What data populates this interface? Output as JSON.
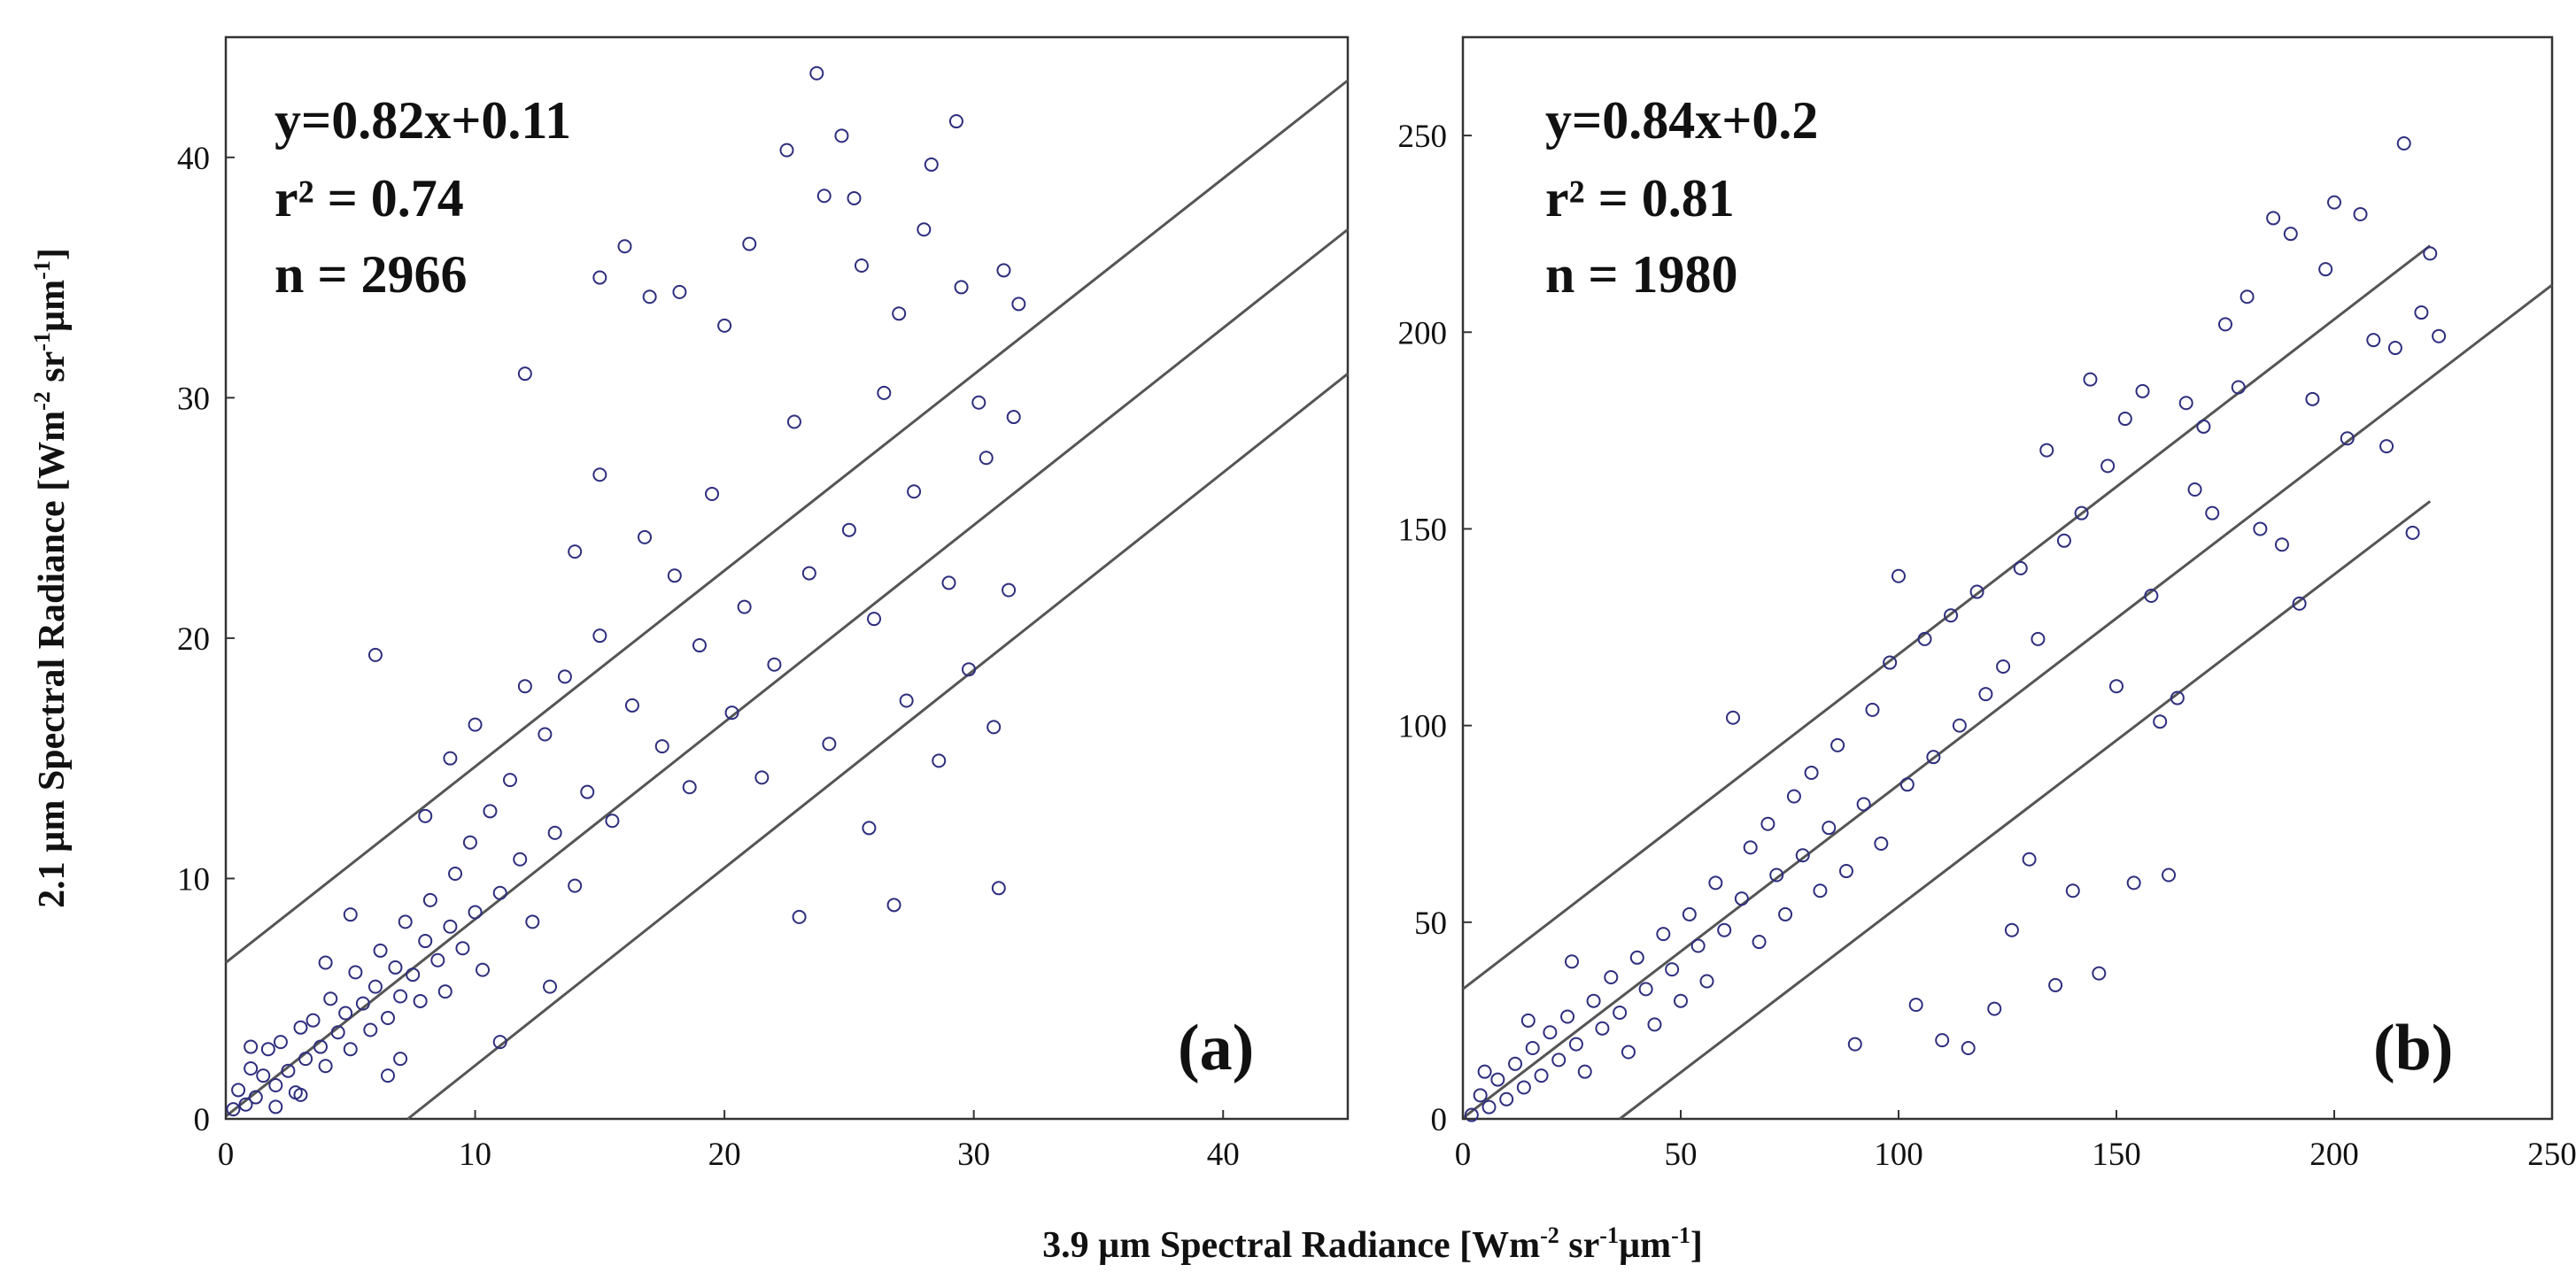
{
  "figure": {
    "xlabel_main": "3.9 µm Spectral Radiance [Wm",
    "xlabel_sup1": "-2",
    "xlabel_mid": " sr",
    "xlabel_sup2": "-1",
    "xlabel_mid2": "µm",
    "xlabel_sup3": "-1",
    "xlabel_end": "]",
    "ylabel_main": "2.1 µm Spectral Radiance [Wm",
    "ylabel_sup1": "-2",
    "ylabel_mid": " sr",
    "ylabel_sup2": "-1",
    "ylabel_mid2": "µm",
    "ylabel_sup3": "-1",
    "ylabel_end": "]",
    "marker_color": "#2e2e7e",
    "line_color": "#555555"
  },
  "chart_data": [
    {
      "type": "scatter",
      "panel_label": "(a)",
      "equation": "y=0.82x+0.11",
      "r2": "r² = 0.74",
      "n": "n = 2966",
      "xlim": [
        0,
        45
      ],
      "ylim": [
        0,
        45
      ],
      "xticks": [
        "0",
        "10",
        "20",
        "30",
        "40"
      ],
      "xtick_values": [
        0,
        10,
        20,
        30,
        40
      ],
      "yticks": [
        "0",
        "10",
        "20",
        "30",
        "40"
      ],
      "ytick_values": [
        0,
        10,
        20,
        30,
        40
      ],
      "lines": [
        {
          "name": "upper bound",
          "x": [
            0,
            45
          ],
          "y": [
            6.5,
            43.2
          ]
        },
        {
          "name": "fit",
          "x": [
            0,
            45
          ],
          "y": [
            0.11,
            37.0
          ]
        },
        {
          "name": "lower bound",
          "x": [
            7.3,
            45
          ],
          "y": [
            0.0,
            31.0
          ]
        }
      ],
      "points": [
        [
          0.3,
          0.4
        ],
        [
          0.5,
          1.2
        ],
        [
          0.8,
          0.6
        ],
        [
          1.0,
          2.1
        ],
        [
          1.2,
          0.9
        ],
        [
          1.5,
          1.8
        ],
        [
          1.7,
          2.9
        ],
        [
          2.0,
          1.4
        ],
        [
          2.2,
          3.2
        ],
        [
          2.5,
          2.0
        ],
        [
          2.8,
          1.1
        ],
        [
          3.0,
          3.8
        ],
        [
          3.2,
          2.5
        ],
        [
          3.5,
          4.1
        ],
        [
          3.8,
          3.0
        ],
        [
          4.0,
          2.2
        ],
        [
          4.2,
          5.0
        ],
        [
          4.5,
          3.6
        ],
        [
          4.8,
          4.4
        ],
        [
          5.0,
          2.9
        ],
        [
          5.2,
          6.1
        ],
        [
          5.5,
          4.8
        ],
        [
          5.8,
          3.7
        ],
        [
          6.0,
          5.5
        ],
        [
          6.2,
          7.0
        ],
        [
          6.5,
          4.2
        ],
        [
          6.8,
          6.3
        ],
        [
          7.0,
          5.1
        ],
        [
          7.2,
          8.2
        ],
        [
          7.5,
          6.0
        ],
        [
          7.8,
          4.9
        ],
        [
          8.0,
          7.4
        ],
        [
          8.2,
          9.1
        ],
        [
          8.5,
          6.6
        ],
        [
          8.8,
          5.3
        ],
        [
          9.0,
          8.0
        ],
        [
          9.2,
          10.2
        ],
        [
          9.5,
          7.1
        ],
        [
          9.8,
          11.5
        ],
        [
          10.0,
          8.6
        ],
        [
          10.3,
          6.2
        ],
        [
          10.6,
          12.8
        ],
        [
          11.0,
          9.4
        ],
        [
          11.4,
          14.1
        ],
        [
          11.8,
          10.8
        ],
        [
          12.0,
          31.0
        ],
        [
          12.3,
          8.2
        ],
        [
          12.8,
          16.0
        ],
        [
          13.2,
          11.9
        ],
        [
          13.6,
          18.4
        ],
        [
          14.0,
          9.7
        ],
        [
          14.5,
          13.6
        ],
        [
          15.0,
          20.1
        ],
        [
          15.0,
          35.0
        ],
        [
          15.5,
          12.4
        ],
        [
          16.0,
          36.3
        ],
        [
          16.3,
          17.2
        ],
        [
          16.8,
          24.2
        ],
        [
          17.0,
          34.2
        ],
        [
          17.5,
          15.5
        ],
        [
          18.0,
          22.6
        ],
        [
          18.2,
          34.4
        ],
        [
          18.6,
          13.8
        ],
        [
          19.0,
          19.7
        ],
        [
          19.5,
          26.0
        ],
        [
          20.0,
          33.0
        ],
        [
          20.3,
          16.9
        ],
        [
          20.8,
          21.3
        ],
        [
          21.0,
          36.4
        ],
        [
          21.5,
          14.2
        ],
        [
          22.0,
          18.9
        ],
        [
          22.5,
          40.3
        ],
        [
          22.8,
          29.0
        ],
        [
          23.0,
          8.4
        ],
        [
          23.4,
          22.7
        ],
        [
          23.7,
          43.5
        ],
        [
          24.0,
          38.4
        ],
        [
          24.2,
          15.6
        ],
        [
          24.7,
          40.9
        ],
        [
          25.0,
          24.5
        ],
        [
          25.2,
          38.3
        ],
        [
          25.5,
          35.5
        ],
        [
          25.8,
          12.1
        ],
        [
          26.0,
          20.8
        ],
        [
          26.4,
          30.2
        ],
        [
          26.8,
          8.9
        ],
        [
          27.0,
          33.5
        ],
        [
          27.3,
          17.4
        ],
        [
          27.6,
          26.1
        ],
        [
          28.0,
          37.0
        ],
        [
          28.3,
          39.7
        ],
        [
          28.6,
          14.9
        ],
        [
          29.0,
          22.3
        ],
        [
          29.3,
          41.5
        ],
        [
          29.5,
          34.6
        ],
        [
          29.8,
          18.7
        ],
        [
          30.2,
          29.8
        ],
        [
          30.5,
          27.5
        ],
        [
          30.8,
          16.3
        ],
        [
          31.0,
          9.6
        ],
        [
          31.2,
          35.3
        ],
        [
          31.4,
          22.0
        ],
        [
          31.6,
          29.2
        ],
        [
          31.8,
          33.9
        ],
        [
          1.0,
          3.0
        ],
        [
          2.0,
          0.5
        ],
        [
          3.0,
          1.0
        ],
        [
          4.0,
          6.5
        ],
        [
          5.0,
          8.5
        ],
        [
          6.0,
          19.3
        ],
        [
          6.5,
          1.8
        ],
        [
          7.0,
          2.5
        ],
        [
          8.0,
          12.6
        ],
        [
          9.0,
          15.0
        ],
        [
          10.0,
          16.4
        ],
        [
          11.0,
          3.2
        ],
        [
          12.0,
          18.0
        ],
        [
          13.0,
          5.5
        ],
        [
          14.0,
          23.6
        ],
        [
          15.0,
          26.8
        ]
      ]
    },
    {
      "type": "scatter",
      "panel_label": "(b)",
      "equation": "y=0.84x+0.2",
      "r2": "r² = 0.81",
      "n": "n = 1980",
      "xlim": [
        0,
        250
      ],
      "ylim": [
        0,
        275
      ],
      "xticks": [
        "0",
        "50",
        "100",
        "150",
        "200",
        "250"
      ],
      "xtick_values": [
        0,
        50,
        100,
        150,
        200,
        250
      ],
      "yticks": [
        "0",
        "50",
        "100",
        "150",
        "200",
        "250"
      ],
      "ytick_values": [
        0,
        50,
        100,
        150,
        200,
        250
      ],
      "lines": [
        {
          "name": "upper bound",
          "x": [
            0,
            222
          ],
          "y": [
            33,
            222
          ]
        },
        {
          "name": "fit",
          "x": [
            0,
            250
          ],
          "y": [
            0.2,
            212
          ]
        },
        {
          "name": "lower bound",
          "x": [
            36,
            222
          ],
          "y": [
            0,
            157
          ]
        }
      ],
      "points": [
        [
          2,
          1
        ],
        [
          4,
          6
        ],
        [
          6,
          3
        ],
        [
          8,
          10
        ],
        [
          10,
          5
        ],
        [
          12,
          14
        ],
        [
          14,
          8
        ],
        [
          16,
          18
        ],
        [
          18,
          11
        ],
        [
          20,
          22
        ],
        [
          22,
          15
        ],
        [
          24,
          26
        ],
        [
          26,
          19
        ],
        [
          28,
          12
        ],
        [
          30,
          30
        ],
        [
          32,
          23
        ],
        [
          34,
          36
        ],
        [
          36,
          27
        ],
        [
          38,
          17
        ],
        [
          40,
          41
        ],
        [
          42,
          33
        ],
        [
          44,
          24
        ],
        [
          46,
          47
        ],
        [
          48,
          38
        ],
        [
          50,
          30
        ],
        [
          52,
          52
        ],
        [
          54,
          44
        ],
        [
          56,
          35
        ],
        [
          58,
          60
        ],
        [
          60,
          48
        ],
        [
          62,
          102
        ],
        [
          64,
          56
        ],
        [
          66,
          69
        ],
        [
          68,
          45
        ],
        [
          70,
          75
        ],
        [
          72,
          62
        ],
        [
          74,
          52
        ],
        [
          76,
          82
        ],
        [
          78,
          67
        ],
        [
          80,
          88
        ],
        [
          82,
          58
        ],
        [
          84,
          74
        ],
        [
          86,
          95
        ],
        [
          88,
          63
        ],
        [
          90,
          19
        ],
        [
          92,
          80
        ],
        [
          94,
          104
        ],
        [
          96,
          70
        ],
        [
          98,
          116
        ],
        [
          100,
          138
        ],
        [
          102,
          85
        ],
        [
          104,
          29
        ],
        [
          106,
          122
        ],
        [
          108,
          92
        ],
        [
          110,
          20
        ],
        [
          112,
          128
        ],
        [
          114,
          100
        ],
        [
          116,
          18
        ],
        [
          118,
          134
        ],
        [
          120,
          108
        ],
        [
          122,
          28
        ],
        [
          124,
          115
        ],
        [
          126,
          48
        ],
        [
          128,
          140
        ],
        [
          130,
          66
        ],
        [
          132,
          122
        ],
        [
          134,
          170
        ],
        [
          136,
          34
        ],
        [
          138,
          147
        ],
        [
          140,
          58
        ],
        [
          142,
          154
        ],
        [
          144,
          188
        ],
        [
          146,
          37
        ],
        [
          148,
          166
        ],
        [
          150,
          110
        ],
        [
          152,
          178
        ],
        [
          154,
          60
        ],
        [
          156,
          185
        ],
        [
          158,
          133
        ],
        [
          160,
          101
        ],
        [
          162,
          62
        ],
        [
          164,
          107
        ],
        [
          166,
          182
        ],
        [
          168,
          160
        ],
        [
          170,
          176
        ],
        [
          172,
          154
        ],
        [
          175,
          202
        ],
        [
          178,
          186
        ],
        [
          180,
          209
        ],
        [
          183,
          150
        ],
        [
          186,
          229
        ],
        [
          188,
          146
        ],
        [
          190,
          225
        ],
        [
          192,
          131
        ],
        [
          195,
          183
        ],
        [
          198,
          216
        ],
        [
          200,
          233
        ],
        [
          203,
          173
        ],
        [
          206,
          230
        ],
        [
          209,
          198
        ],
        [
          212,
          171
        ],
        [
          214,
          196
        ],
        [
          216,
          248
        ],
        [
          218,
          149
        ],
        [
          220,
          205
        ],
        [
          222,
          220
        ],
        [
          224,
          199
        ],
        [
          5,
          12
        ],
        [
          15,
          25
        ],
        [
          25,
          40
        ]
      ]
    }
  ]
}
